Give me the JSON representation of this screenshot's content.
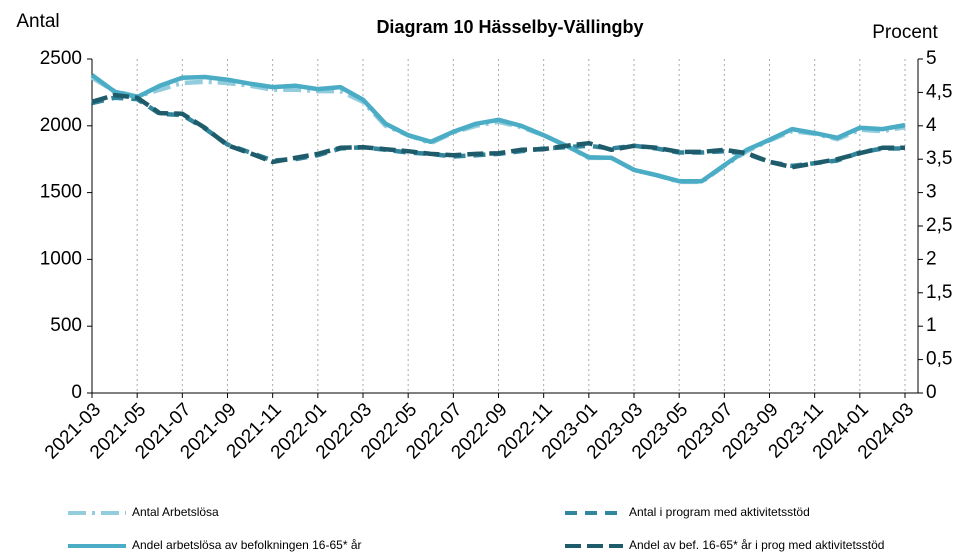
{
  "chart_data": {
    "type": "line",
    "title": "Diagram 10 Hässelby-Vällingby",
    "y_label": "Antal",
    "y2_label": "Procent",
    "categories": [
      "2021-03",
      null,
      "2021-05",
      null,
      "2021-07",
      null,
      "2021-09",
      null,
      "2021-11",
      null,
      "2022-01",
      null,
      "2022-03",
      null,
      "2022-05",
      null,
      "2022-07",
      null,
      "2022-09",
      null,
      "2022-11",
      null,
      "2023-01",
      null,
      "2023-03",
      null,
      "2023-05",
      null,
      "2023-07",
      null,
      "2023-09",
      null,
      "2023-11",
      null,
      "2024-01",
      null,
      "2024-03"
    ],
    "ylim": [
      0,
      2500
    ],
    "yticks": [
      0,
      500,
      1000,
      1500,
      2000,
      2500
    ],
    "y2lim": [
      0,
      5
    ],
    "y2ticks": [
      0,
      {
        "value": 0.5,
        "label": "0,5"
      },
      1,
      {
        "value": 1.5,
        "label": "1,5"
      },
      2,
      {
        "value": 2.5,
        "label": "2,5"
      },
      3,
      {
        "value": 3.5,
        "label": "3,5"
      },
      4,
      {
        "value": 4.5,
        "label": "4,5"
      },
      5
    ],
    "grid": true,
    "series": [
      {
        "name": "Antal Arbetslösa",
        "color": "#93cddd",
        "dash": "18 6 3 6",
        "values": [
          2360,
          2260,
          2220,
          2270,
          2320,
          2330,
          2320,
          2300,
          2270,
          2270,
          2260,
          2260,
          2180,
          2000,
          1930,
          1870,
          1950,
          2000,
          2030,
          1990,
          1930,
          1850,
          1760,
          1760,
          1670,
          1630,
          1580,
          1580,
          1700,
          1810,
          1890,
          1960,
          1940,
          1900,
          1970,
          1960,
          1990
        ]
      },
      {
        "name": "Antal i program med aktivitetsstöd",
        "color": "#31859c",
        "dash": "12 8",
        "values": [
          2170,
          2210,
          2200,
          2090,
          2080,
          1980,
          1860,
          1800,
          1740,
          1750,
          1780,
          1830,
          1840,
          1820,
          1800,
          1790,
          1770,
          1780,
          1790,
          1810,
          1830,
          1840,
          1850,
          1830,
          1850,
          1830,
          1800,
          1800,
          1810,
          1790,
          1730,
          1700,
          1720,
          1740,
          1800,
          1830,
          1830
        ]
      },
      {
        "name": "Andel arbetslösa av befolkningen 16-65* år",
        "color": "#4bacc6",
        "axis": "y2",
        "values": [
          4.76,
          4.51,
          4.43,
          4.6,
          4.72,
          4.73,
          4.69,
          4.63,
          4.58,
          4.6,
          4.55,
          4.58,
          4.39,
          4.03,
          3.86,
          3.76,
          3.91,
          4.03,
          4.09,
          4.0,
          3.86,
          3.7,
          3.53,
          3.52,
          3.34,
          3.26,
          3.17,
          3.17,
          3.41,
          3.64,
          3.79,
          3.95,
          3.89,
          3.82,
          3.97,
          3.95,
          4.01
        ]
      },
      {
        "name": "Andel av bef. 16-65* år i prog med aktivitetsstöd",
        "color": "#1f5c6b",
        "axis": "y2",
        "dash": "16 6",
        "values": [
          4.36,
          4.46,
          4.42,
          4.19,
          4.18,
          3.97,
          3.71,
          3.59,
          3.46,
          3.52,
          3.58,
          3.67,
          3.68,
          3.65,
          3.62,
          3.58,
          3.56,
          3.58,
          3.59,
          3.64,
          3.65,
          3.7,
          3.74,
          3.64,
          3.7,
          3.67,
          3.61,
          3.61,
          3.64,
          3.59,
          3.46,
          3.38,
          3.44,
          3.5,
          3.59,
          3.67,
          3.67
        ]
      }
    ]
  }
}
